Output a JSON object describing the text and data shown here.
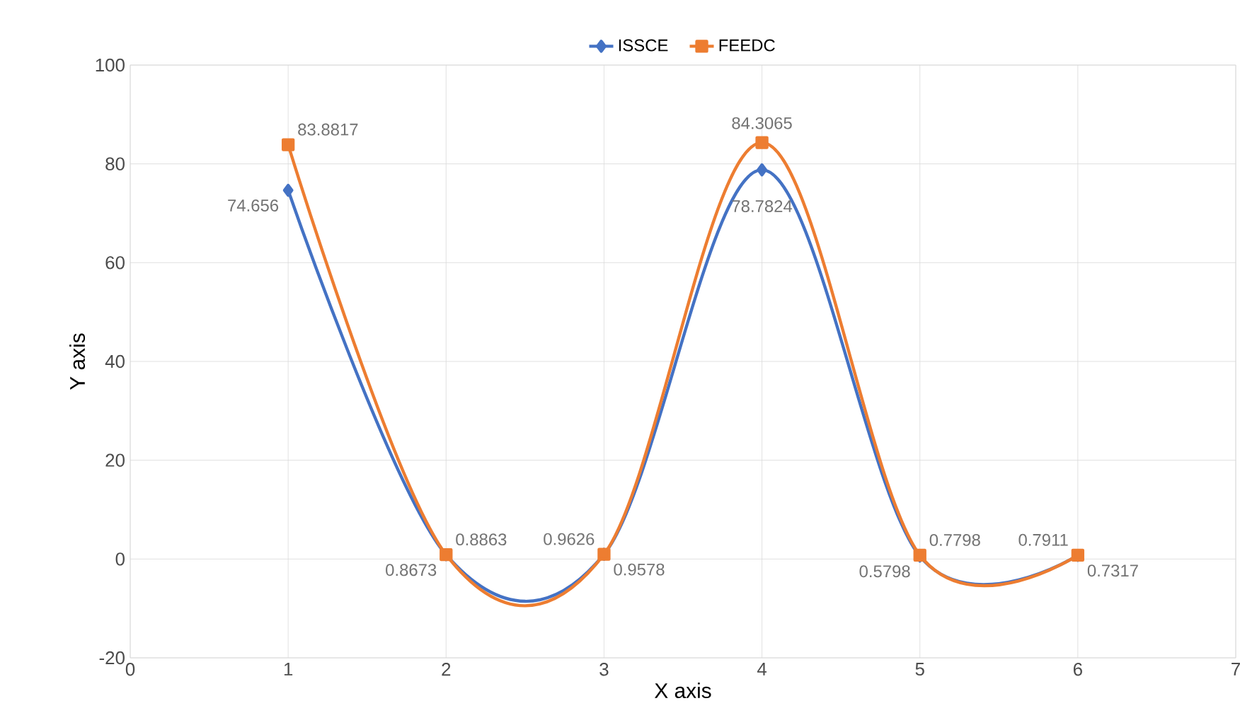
{
  "chart_data": {
    "type": "line",
    "xlabel": "X axis",
    "ylabel": "Y axis",
    "x": [
      1,
      2,
      3,
      4,
      5,
      6
    ],
    "series": [
      {
        "name": "ISSCE",
        "color": "#4472c4",
        "marker": "diamond",
        "values": [
          74.656,
          0.8673,
          0.9578,
          78.7824,
          0.5798,
          0.7317
        ]
      },
      {
        "name": "FEEDC",
        "color": "#ed7d31",
        "marker": "square",
        "values": [
          83.8817,
          0.8863,
          0.9626,
          84.3065,
          0.7798,
          0.7911
        ]
      }
    ],
    "xlim": [
      0,
      7
    ],
    "xticks": [
      0,
      1,
      2,
      3,
      4,
      5,
      6,
      7
    ],
    "ylim": [
      -20,
      100
    ],
    "yticks": [
      -20,
      0,
      20,
      40,
      60,
      80,
      100
    ],
    "grid": true,
    "legend": "top",
    "data_labels": true,
    "line_style": "solid"
  }
}
